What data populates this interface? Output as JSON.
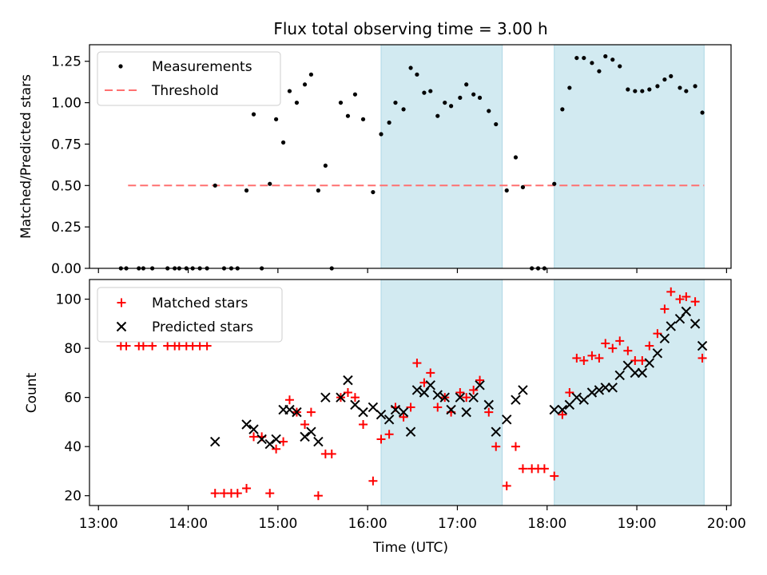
{
  "figure": {
    "title": "Flux total observing time = 3.00 h",
    "x_label": "Time (UTC)",
    "x_tick_labels": [
      "13:00",
      "14:00",
      "15:00",
      "16:00",
      "17:00",
      "18:00",
      "19:00",
      "20:00"
    ]
  },
  "colors": {
    "measurements": "#000000",
    "threshold": "#ff7070",
    "matched": "#ff0000",
    "predicted": "#000000",
    "shade": "#add8e6"
  },
  "chart_data": [
    {
      "type": "scatter",
      "ylabel": "Matched/Predicted stars",
      "xlim": [
        12.9,
        20.05
      ],
      "ylim": [
        0,
        1.35
      ],
      "y_ticks": [
        "0.00",
        "0.25",
        "0.50",
        "0.75",
        "1.00",
        "1.25"
      ],
      "x_unit": "hours UTC",
      "shaded_intervals": [
        [
          16.15,
          17.5
        ],
        [
          18.08,
          19.75
        ]
      ],
      "threshold": {
        "name": "Threshold",
        "y": 0.5,
        "x_range": [
          13.33,
          19.75
        ]
      },
      "series": [
        {
          "name": "Measurements",
          "marker": "dot",
          "points": [
            [
              13.25,
              0
            ],
            [
              13.31,
              0
            ],
            [
              13.45,
              0
            ],
            [
              13.5,
              0
            ],
            [
              13.6,
              0
            ],
            [
              13.77,
              0
            ],
            [
              13.85,
              0
            ],
            [
              13.9,
              0
            ],
            [
              13.98,
              0
            ],
            [
              14.05,
              0
            ],
            [
              14.13,
              0
            ],
            [
              14.21,
              0
            ],
            [
              14.3,
              0.5
            ],
            [
              14.4,
              0
            ],
            [
              14.48,
              0
            ],
            [
              14.55,
              0
            ],
            [
              14.65,
              0.47
            ],
            [
              14.73,
              0.93
            ],
            [
              14.82,
              0
            ],
            [
              14.91,
              0.51
            ],
            [
              14.98,
              0.9
            ],
            [
              15.06,
              0.76
            ],
            [
              15.13,
              1.07
            ],
            [
              15.21,
              1.0
            ],
            [
              15.3,
              1.11
            ],
            [
              15.37,
              1.17
            ],
            [
              15.45,
              0.47
            ],
            [
              15.53,
              0.62
            ],
            [
              15.6,
              0
            ],
            [
              15.7,
              1.0
            ],
            [
              15.78,
              0.92
            ],
            [
              15.86,
              1.05
            ],
            [
              15.95,
              0.9
            ],
            [
              16.06,
              0.46
            ],
            [
              16.15,
              0.81
            ],
            [
              16.24,
              0.88
            ],
            [
              16.31,
              1.0
            ],
            [
              16.4,
              0.96
            ],
            [
              16.48,
              1.21
            ],
            [
              16.55,
              1.17
            ],
            [
              16.63,
              1.06
            ],
            [
              16.7,
              1.07
            ],
            [
              16.78,
              0.92
            ],
            [
              16.86,
              1.0
            ],
            [
              16.93,
              0.98
            ],
            [
              17.03,
              1.03
            ],
            [
              17.1,
              1.11
            ],
            [
              17.18,
              1.05
            ],
            [
              17.25,
              1.03
            ],
            [
              17.35,
              0.95
            ],
            [
              17.43,
              0.87
            ],
            [
              17.55,
              0.47
            ],
            [
              17.65,
              0.67
            ],
            [
              17.73,
              0.49
            ],
            [
              17.83,
              0
            ],
            [
              17.9,
              0
            ],
            [
              17.97,
              0
            ],
            [
              18.08,
              0.51
            ],
            [
              18.17,
              0.96
            ],
            [
              18.25,
              1.09
            ],
            [
              18.33,
              1.27
            ],
            [
              18.41,
              1.27
            ],
            [
              18.5,
              1.24
            ],
            [
              18.58,
              1.19
            ],
            [
              18.65,
              1.28
            ],
            [
              18.73,
              1.26
            ],
            [
              18.81,
              1.22
            ],
            [
              18.9,
              1.08
            ],
            [
              18.98,
              1.07
            ],
            [
              19.06,
              1.07
            ],
            [
              19.14,
              1.08
            ],
            [
              19.23,
              1.1
            ],
            [
              19.31,
              1.14
            ],
            [
              19.38,
              1.16
            ],
            [
              19.48,
              1.09
            ],
            [
              19.55,
              1.07
            ],
            [
              19.65,
              1.1
            ],
            [
              19.73,
              0.94
            ]
          ]
        }
      ]
    },
    {
      "type": "scatter",
      "ylabel": "Count",
      "xlim": [
        12.9,
        20.05
      ],
      "ylim": [
        16,
        108
      ],
      "y_ticks": [
        "20",
        "40",
        "60",
        "80",
        "100"
      ],
      "x_unit": "hours UTC",
      "shaded_intervals": [
        [
          16.15,
          17.5
        ],
        [
          18.08,
          19.75
        ]
      ],
      "series": [
        {
          "name": "Matched stars",
          "marker": "plus",
          "points": [
            [
              13.25,
              81
            ],
            [
              13.31,
              81
            ],
            [
              13.45,
              81
            ],
            [
              13.5,
              81
            ],
            [
              13.6,
              81
            ],
            [
              13.77,
              81
            ],
            [
              13.85,
              81
            ],
            [
              13.9,
              81
            ],
            [
              13.98,
              81
            ],
            [
              14.05,
              81
            ],
            [
              14.13,
              81
            ],
            [
              14.21,
              81
            ],
            [
              14.3,
              21
            ],
            [
              14.4,
              21
            ],
            [
              14.48,
              21
            ],
            [
              14.55,
              21
            ],
            [
              14.65,
              23
            ],
            [
              14.73,
              44
            ],
            [
              14.82,
              44
            ],
            [
              14.91,
              21
            ],
            [
              14.98,
              39
            ],
            [
              15.06,
              42
            ],
            [
              15.13,
              59
            ],
            [
              15.21,
              54
            ],
            [
              15.3,
              49
            ],
            [
              15.37,
              54
            ],
            [
              15.45,
              20
            ],
            [
              15.53,
              37
            ],
            [
              15.6,
              37
            ],
            [
              15.7,
              60
            ],
            [
              15.78,
              62
            ],
            [
              15.86,
              60
            ],
            [
              15.95,
              49
            ],
            [
              16.06,
              26
            ],
            [
              16.15,
              43
            ],
            [
              16.24,
              45
            ],
            [
              16.31,
              56
            ],
            [
              16.4,
              52
            ],
            [
              16.48,
              56
            ],
            [
              16.55,
              74
            ],
            [
              16.63,
              66
            ],
            [
              16.7,
              70
            ],
            [
              16.78,
              56
            ],
            [
              16.86,
              60
            ],
            [
              16.93,
              54
            ],
            [
              17.03,
              62
            ],
            [
              17.1,
              60
            ],
            [
              17.18,
              63
            ],
            [
              17.25,
              67
            ],
            [
              17.35,
              54
            ],
            [
              17.43,
              40
            ],
            [
              17.55,
              24
            ],
            [
              17.65,
              40
            ],
            [
              17.73,
              31
            ],
            [
              17.83,
              31
            ],
            [
              17.9,
              31
            ],
            [
              17.97,
              31
            ],
            [
              18.08,
              28
            ],
            [
              18.17,
              53
            ],
            [
              18.25,
              62
            ],
            [
              18.33,
              76
            ],
            [
              18.41,
              75
            ],
            [
              18.5,
              77
            ],
            [
              18.58,
              76
            ],
            [
              18.65,
              82
            ],
            [
              18.73,
              80
            ],
            [
              18.81,
              83
            ],
            [
              18.9,
              79
            ],
            [
              18.98,
              75
            ],
            [
              19.06,
              75
            ],
            [
              19.14,
              81
            ],
            [
              19.23,
              86
            ],
            [
              19.31,
              96
            ],
            [
              19.38,
              103
            ],
            [
              19.48,
              100
            ],
            [
              19.55,
              101
            ],
            [
              19.65,
              99
            ],
            [
              19.73,
              76
            ]
          ]
        },
        {
          "name": "Predicted stars",
          "marker": "x",
          "points": [
            [
              14.3,
              42
            ],
            [
              14.65,
              49
            ],
            [
              14.73,
              47
            ],
            [
              14.82,
              43
            ],
            [
              14.91,
              41
            ],
            [
              14.98,
              43
            ],
            [
              15.06,
              55
            ],
            [
              15.13,
              55
            ],
            [
              15.21,
              54
            ],
            [
              15.3,
              44
            ],
            [
              15.37,
              46
            ],
            [
              15.45,
              42
            ],
            [
              15.53,
              60
            ],
            [
              15.7,
              60
            ],
            [
              15.78,
              67
            ],
            [
              15.86,
              57
            ],
            [
              15.95,
              54
            ],
            [
              16.06,
              56
            ],
            [
              16.15,
              53
            ],
            [
              16.24,
              51
            ],
            [
              16.31,
              55
            ],
            [
              16.4,
              54
            ],
            [
              16.48,
              46
            ],
            [
              16.55,
              63
            ],
            [
              16.63,
              62
            ],
            [
              16.7,
              65
            ],
            [
              16.78,
              61
            ],
            [
              16.86,
              60
            ],
            [
              16.93,
              55
            ],
            [
              17.03,
              60
            ],
            [
              17.1,
              54
            ],
            [
              17.18,
              60
            ],
            [
              17.25,
              65
            ],
            [
              17.35,
              57
            ],
            [
              17.43,
              46
            ],
            [
              17.55,
              51
            ],
            [
              17.65,
              59
            ],
            [
              17.73,
              63
            ],
            [
              18.08,
              55
            ],
            [
              18.17,
              55
            ],
            [
              18.25,
              57
            ],
            [
              18.33,
              60
            ],
            [
              18.41,
              59
            ],
            [
              18.5,
              62
            ],
            [
              18.58,
              63
            ],
            [
              18.65,
              64
            ],
            [
              18.73,
              64
            ],
            [
              18.81,
              69
            ],
            [
              18.9,
              73
            ],
            [
              18.98,
              70
            ],
            [
              19.06,
              70
            ],
            [
              19.14,
              74
            ],
            [
              19.23,
              78
            ],
            [
              19.31,
              84
            ],
            [
              19.38,
              89
            ],
            [
              19.48,
              92
            ],
            [
              19.55,
              95
            ],
            [
              19.65,
              90
            ],
            [
              19.73,
              81
            ]
          ]
        }
      ]
    }
  ]
}
